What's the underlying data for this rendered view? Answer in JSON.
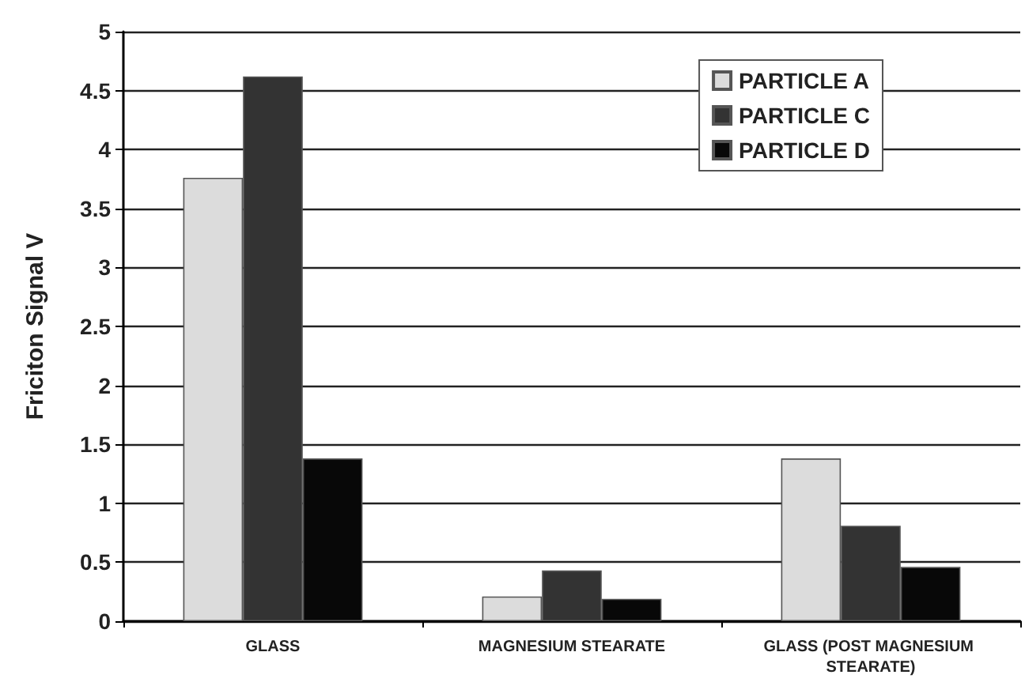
{
  "chart_data": {
    "type": "bar",
    "ylabel": "Friciton Signal V",
    "categories": [
      "GLASS",
      "MAGNESIUM STEARATE",
      "GLASS (POST MAGNESIUM STEARATE)"
    ],
    "series": [
      {
        "name": "PARTICLE A",
        "color": "#dcdcdc",
        "values": [
          3.76,
          0.21,
          1.38
        ]
      },
      {
        "name": "PARTICLE C",
        "color": "#333333",
        "values": [
          4.62,
          0.43,
          0.81
        ]
      },
      {
        "name": "PARTICLE D",
        "color": "#080808",
        "values": [
          1.38,
          0.19,
          0.46
        ]
      }
    ],
    "ylim": [
      0,
      5
    ],
    "yticks": [
      0,
      0.5,
      1,
      1.5,
      2,
      2.5,
      3,
      3.5,
      4,
      4.5,
      5
    ],
    "grid": "y",
    "legend": "top right"
  }
}
